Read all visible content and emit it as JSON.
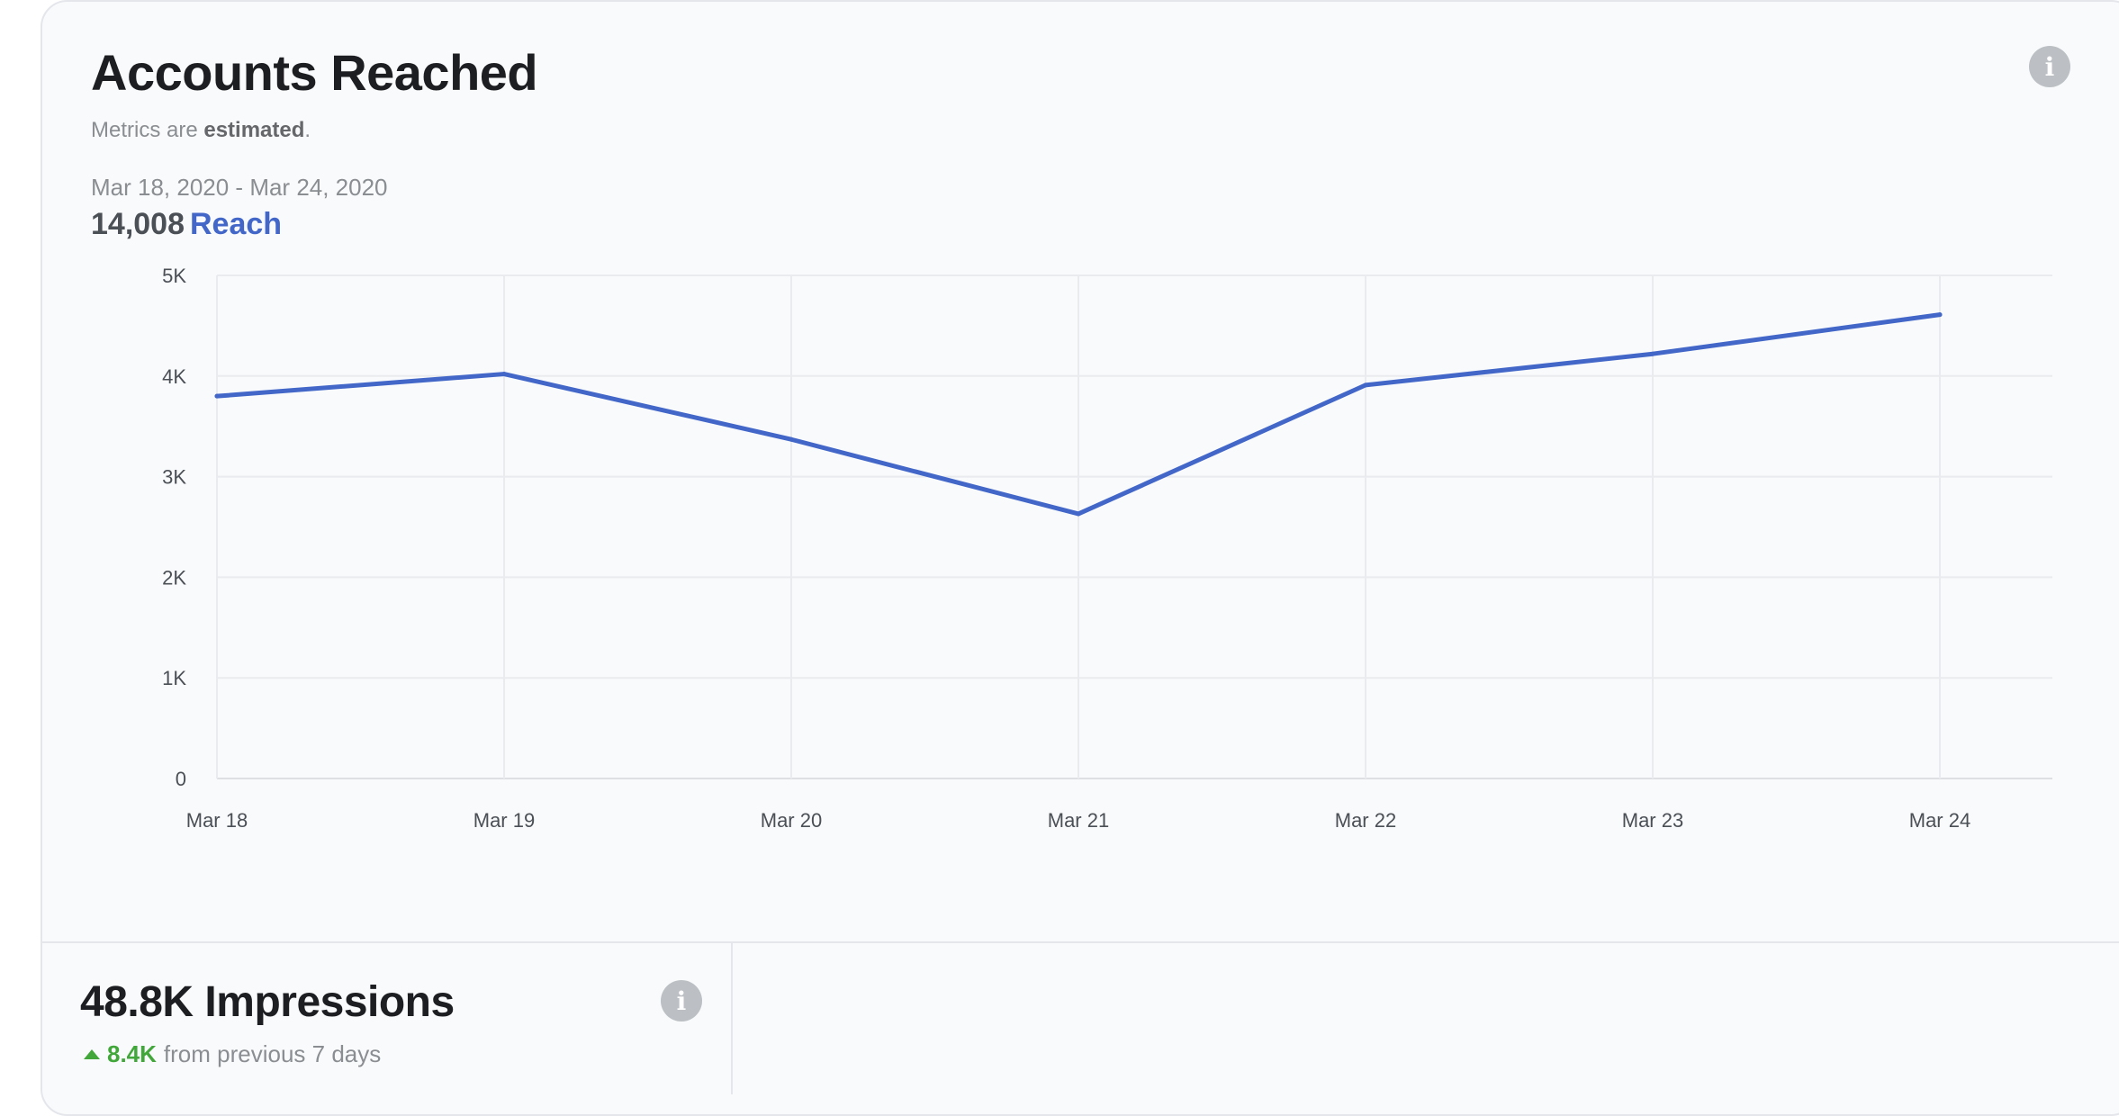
{
  "card": {
    "title": "Accounts Reached",
    "subtitle_prefix": "Metrics are ",
    "subtitle_bold": "estimated",
    "subtitle_suffix": ".",
    "date_range": "Mar 18, 2020 - Mar 24, 2020",
    "total_value": "14,008",
    "total_label": "Reach",
    "info_icon": "info-icon"
  },
  "footer": {
    "impressions_title": "48.8K Impressions",
    "delta_value": "8.4K",
    "delta_text": "from previous 7 days",
    "delta_icon": "triangle-up-icon",
    "info_icon": "info-icon"
  },
  "colors": {
    "series": "#4267c9",
    "positive": "#42a73b",
    "grid": "#e9ebee",
    "axis_text": "#4b4f56"
  },
  "chart_data": {
    "type": "line",
    "categories": [
      "Mar 18",
      "Mar 19",
      "Mar 20",
      "Mar 21",
      "Mar 22",
      "Mar 23",
      "Mar 24"
    ],
    "series": [
      {
        "values": [
          3800,
          4020,
          3370,
          2630,
          3910,
          4220,
          4610
        ]
      }
    ],
    "ylim": [
      0,
      5000
    ],
    "yticks": [
      0,
      1000,
      2000,
      3000,
      4000,
      5000
    ],
    "ytick_labels": [
      "0",
      "1K",
      "2K",
      "3K",
      "4K",
      "5K"
    ],
    "grid": true,
    "legend": "none"
  }
}
